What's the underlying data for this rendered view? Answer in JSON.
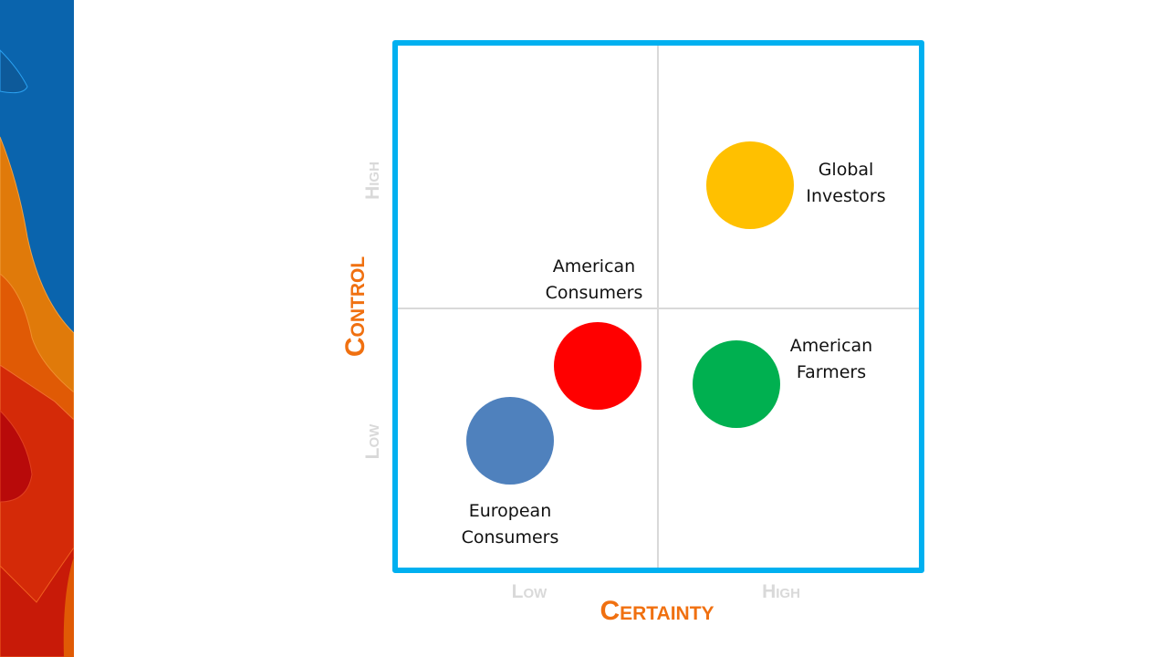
{
  "colors": {
    "frame": "#00b0f0",
    "axis_title": "#f07010",
    "tick": "#d9d9d9",
    "divider": "#d9d9d9"
  },
  "x_axis": {
    "title": "Certainty",
    "low": "Low",
    "high": "High"
  },
  "y_axis": {
    "title": "Control",
    "low": "Low",
    "high": "High"
  },
  "items": [
    {
      "label_line1": "Global",
      "label_line2": "Investors",
      "color": "#ffc000",
      "quadrant": "high certainty / high control"
    },
    {
      "label_line1": "American",
      "label_line2": "Consumers",
      "color": "#ff0000",
      "quadrant": "low certainty / low control"
    },
    {
      "label_line1": "American",
      "label_line2": "Farmers",
      "color": "#00b050",
      "quadrant": "high certainty / low control"
    },
    {
      "label_line1": "European",
      "label_line2": "Consumers",
      "color": "#4f81bd",
      "quadrant": "low certainty / low control"
    }
  ]
}
